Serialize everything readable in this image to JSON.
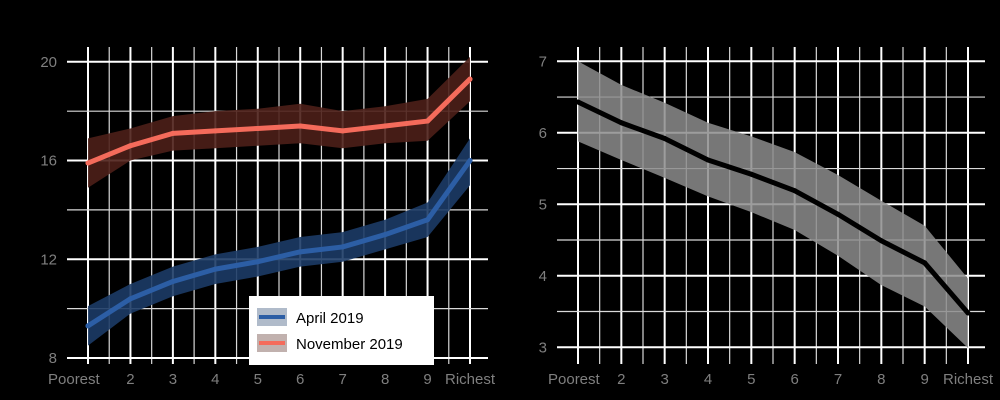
{
  "chart_data": [
    {
      "type": "line",
      "title": "",
      "xlabel": "",
      "ylabel": "",
      "categories": [
        "Poorest",
        "2",
        "3",
        "4",
        "5",
        "6",
        "7",
        "8",
        "9",
        "Richest"
      ],
      "ylim": [
        8,
        20.6
      ],
      "yticks": [
        8,
        12,
        16,
        20
      ],
      "grid": true,
      "legend_position": "bottom-center",
      "series": [
        {
          "name": "April 2019",
          "color": "#2c5ea5",
          "band_color": "#1c3b66",
          "values": [
            9.3,
            10.4,
            11.1,
            11.6,
            11.9,
            12.3,
            12.5,
            13.0,
            13.6,
            16.0
          ],
          "lower": [
            8.5,
            9.8,
            10.5,
            11.0,
            11.3,
            11.7,
            11.9,
            12.4,
            12.9,
            15.0
          ],
          "upper": [
            10.1,
            11.0,
            11.7,
            12.2,
            12.5,
            12.9,
            13.1,
            13.6,
            14.3,
            16.9
          ]
        },
        {
          "name": "November 2019",
          "color": "#f46b5b",
          "band_color": "#4d1f18",
          "values": [
            15.9,
            16.6,
            17.1,
            17.2,
            17.3,
            17.4,
            17.2,
            17.4,
            17.6,
            19.3
          ],
          "lower": [
            14.9,
            16.0,
            16.4,
            16.5,
            16.6,
            16.7,
            16.5,
            16.7,
            16.8,
            18.4
          ],
          "upper": [
            16.9,
            17.3,
            17.8,
            18.0,
            18.1,
            18.3,
            18.0,
            18.2,
            18.5,
            20.2
          ]
        }
      ]
    },
    {
      "type": "line",
      "title": "",
      "xlabel": "",
      "ylabel": "",
      "categories": [
        "Poorest",
        "2",
        "3",
        "4",
        "5",
        "6",
        "7",
        "8",
        "9",
        "Richest"
      ],
      "ylim": [
        2.85,
        7.2
      ],
      "yticks": [
        3,
        4,
        5,
        6,
        7
      ],
      "grid": true,
      "series": [
        {
          "color": "#000000",
          "band_color": "#8c8c8c",
          "values": [
            6.43,
            6.14,
            5.92,
            5.62,
            5.42,
            5.19,
            4.86,
            4.49,
            4.18,
            3.48
          ],
          "lower": [
            5.88,
            5.62,
            5.37,
            5.11,
            4.89,
            4.64,
            4.28,
            3.87,
            3.57,
            2.99
          ],
          "upper": [
            7.0,
            6.67,
            6.42,
            6.14,
            5.95,
            5.73,
            5.41,
            5.05,
            4.7,
            3.96
          ]
        }
      ]
    }
  ]
}
